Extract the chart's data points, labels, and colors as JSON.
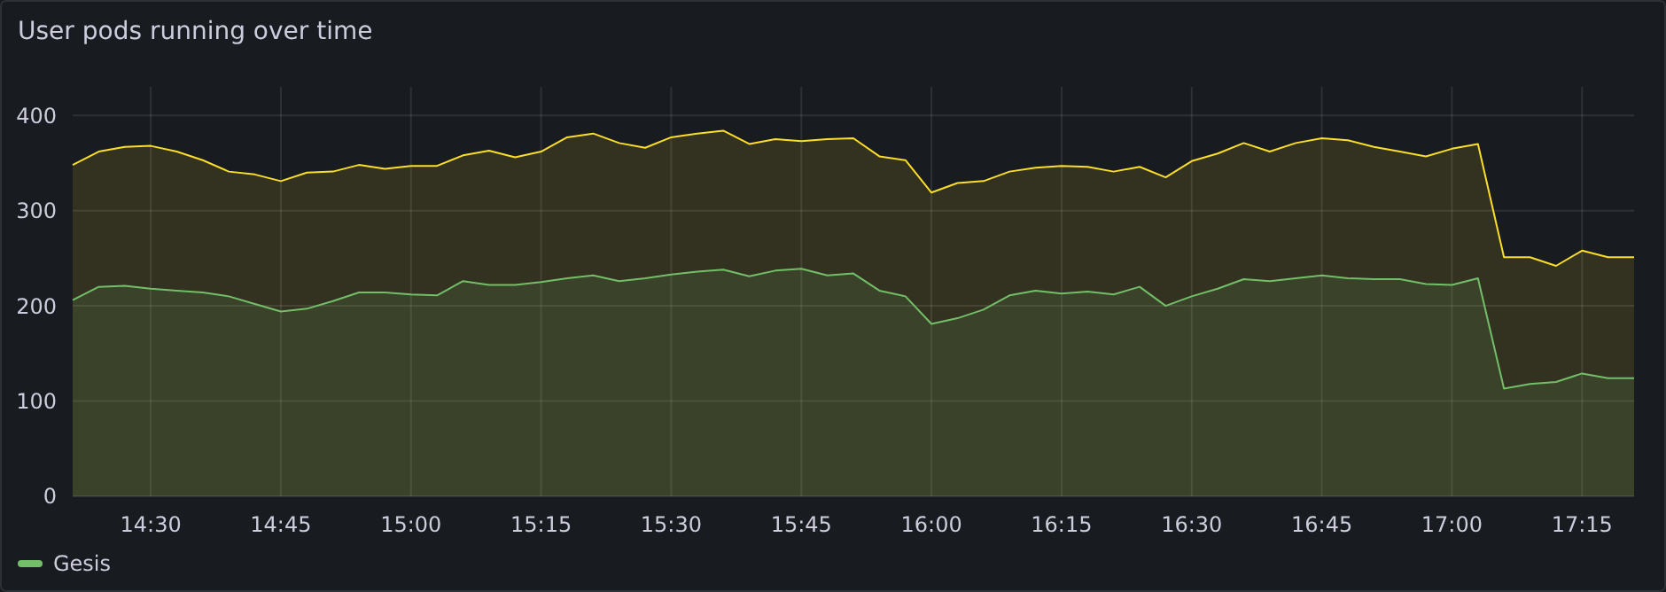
{
  "chart_data": {
    "type": "area",
    "title": "User pods running over time",
    "grid": true,
    "legend": "bottom",
    "xlim": [
      14.35,
      17.35
    ],
    "ylim": [
      0,
      430
    ],
    "xticks": [
      {
        "value": 14.5,
        "label": "14:30"
      },
      {
        "value": 14.75,
        "label": "14:45"
      },
      {
        "value": 15,
        "label": "15:00"
      },
      {
        "value": 15.25,
        "label": "15:15"
      },
      {
        "value": 15.5,
        "label": "15:30"
      },
      {
        "value": 15.75,
        "label": "15:45"
      },
      {
        "value": 16,
        "label": "16:00"
      },
      {
        "value": 16.25,
        "label": "16:15"
      },
      {
        "value": 16.5,
        "label": "16:30"
      },
      {
        "value": 16.75,
        "label": "16:45"
      },
      {
        "value": 17,
        "label": "17:00"
      },
      {
        "value": 17.25,
        "label": "17:15"
      }
    ],
    "yticks": [
      0,
      100,
      200,
      300,
      400
    ],
    "x": [
      14.35,
      14.4,
      14.45,
      14.5,
      14.55,
      14.6,
      14.65,
      14.7,
      14.75,
      14.8,
      14.85,
      14.9,
      14.95,
      15,
      15.05,
      15.1,
      15.15,
      15.2,
      15.25,
      15.3,
      15.35,
      15.4,
      15.45,
      15.5,
      15.55,
      15.6,
      15.65,
      15.7,
      15.75,
      15.8,
      15.85,
      15.9,
      15.95,
      16,
      16.05,
      16.1,
      16.15,
      16.2,
      16.25,
      16.3,
      16.35,
      16.4,
      16.45,
      16.5,
      16.55,
      16.6,
      16.65,
      16.7,
      16.75,
      16.8,
      16.85,
      16.9,
      16.95,
      17,
      17.05,
      17.1,
      17.15,
      17.2,
      17.25,
      17.3,
      17.35
    ],
    "series": [
      {
        "name": "Gesis",
        "color": "#73bf69",
        "values": [
          206,
          220,
          221,
          218,
          216,
          214,
          210,
          202,
          194,
          197,
          205,
          214,
          214,
          212,
          211,
          226,
          222,
          222,
          225,
          229,
          232,
          226,
          229,
          233,
          236,
          238,
          231,
          237,
          239,
          232,
          234,
          216,
          210,
          181,
          187,
          196,
          211,
          216,
          213,
          215,
          212,
          220,
          200,
          210,
          218,
          228,
          226,
          229,
          232,
          229,
          228,
          228,
          223,
          222,
          229,
          113,
          118,
          120,
          129,
          124,
          124
        ]
      },
      {
        "color": "#fade2a",
        "values": [
          348,
          362,
          367,
          368,
          362,
          353,
          341,
          338,
          331,
          340,
          341,
          348,
          344,
          347,
          347,
          358,
          363,
          356,
          362,
          377,
          381,
          371,
          366,
          377,
          381,
          384,
          370,
          375,
          373,
          375,
          376,
          357,
          353,
          319,
          329,
          331,
          341,
          345,
          347,
          346,
          341,
          346,
          335,
          352,
          360,
          371,
          362,
          371,
          376,
          374,
          367,
          362,
          357,
          365,
          370,
          251,
          251,
          242,
          258,
          251,
          251
        ]
      }
    ]
  }
}
